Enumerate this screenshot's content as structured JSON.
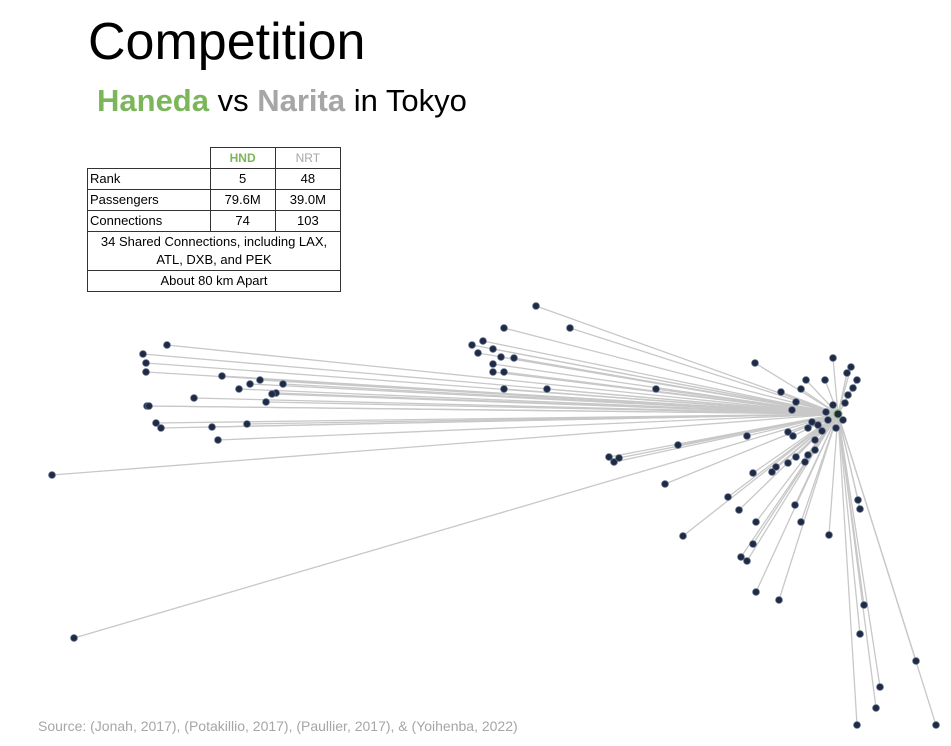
{
  "title": "Competition",
  "subtitle": {
    "a": "Haneda",
    "vs": " vs ",
    "b": "Narita",
    "rest": " in Tokyo"
  },
  "table": {
    "headers": [
      "HND",
      "NRT"
    ],
    "rows": [
      {
        "label": "Rank",
        "hnd": "5",
        "nrt": "48"
      },
      {
        "label": "Passengers",
        "hnd": "79.6M",
        "nrt": "39.0M"
      },
      {
        "label": "Connections",
        "hnd": "74",
        "nrt": "103"
      }
    ],
    "shared": "34 Shared Connections, including LAX, ATL, DXB, and PEK",
    "distance": "About 80 km Apart"
  },
  "source": "Source: (Jonah, 2017), (Potakillio, 2017),  (Paullier, 2017), & (Yoihenba, 2022)",
  "colors": {
    "haneda_green": "#7cb65b",
    "narita_gray": "#a6a6a6",
    "node": "#1f2a44",
    "edge": "#c8c8c8"
  }
}
